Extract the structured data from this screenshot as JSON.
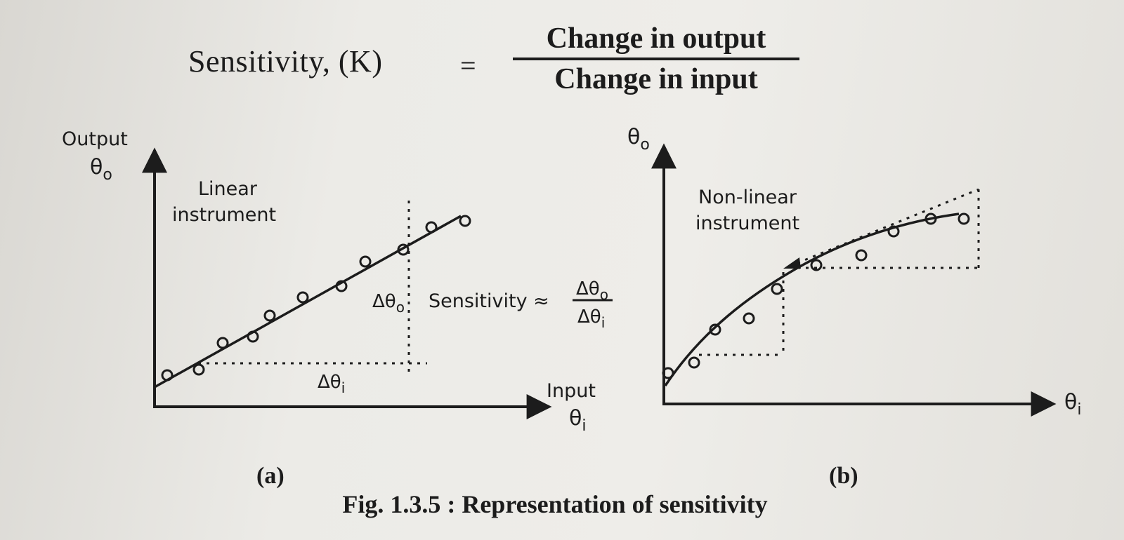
{
  "formula": {
    "lhs": "Sensitivity, (K)",
    "equals": "=",
    "numerator": "Change in output",
    "denominator": "Change in input"
  },
  "panel_a": {
    "y_label_line1": "Output",
    "y_label_line2": "θ",
    "y_label_sub": "o",
    "x_label_line1": "Input",
    "x_label_line2": "θ",
    "x_label_sub": "i",
    "curve_label_line1": "Linear",
    "curve_label_line2": "instrument",
    "delta_in": "Δθ",
    "delta_in_sub": "i",
    "delta_out": "Δθ",
    "delta_out_sub": "o",
    "sens_text": "Sensitivity ≈",
    "frac_num": "Δθ",
    "frac_num_sub": "o",
    "frac_den": "Δθ",
    "frac_den_sub": "i",
    "caption": "(a)"
  },
  "panel_b": {
    "y_label": "θ",
    "y_label_sub": "o",
    "x_label": "θ",
    "x_label_sub": "i",
    "curve_label_line1": "Non-linear",
    "curve_label_line2": "instrument",
    "caption": "(b)"
  },
  "figure_caption": "Fig. 1.3.5 : Representation of sensitivity",
  "colors": {
    "ink": "#1c1c1c",
    "paper": "#ecebe7"
  }
}
